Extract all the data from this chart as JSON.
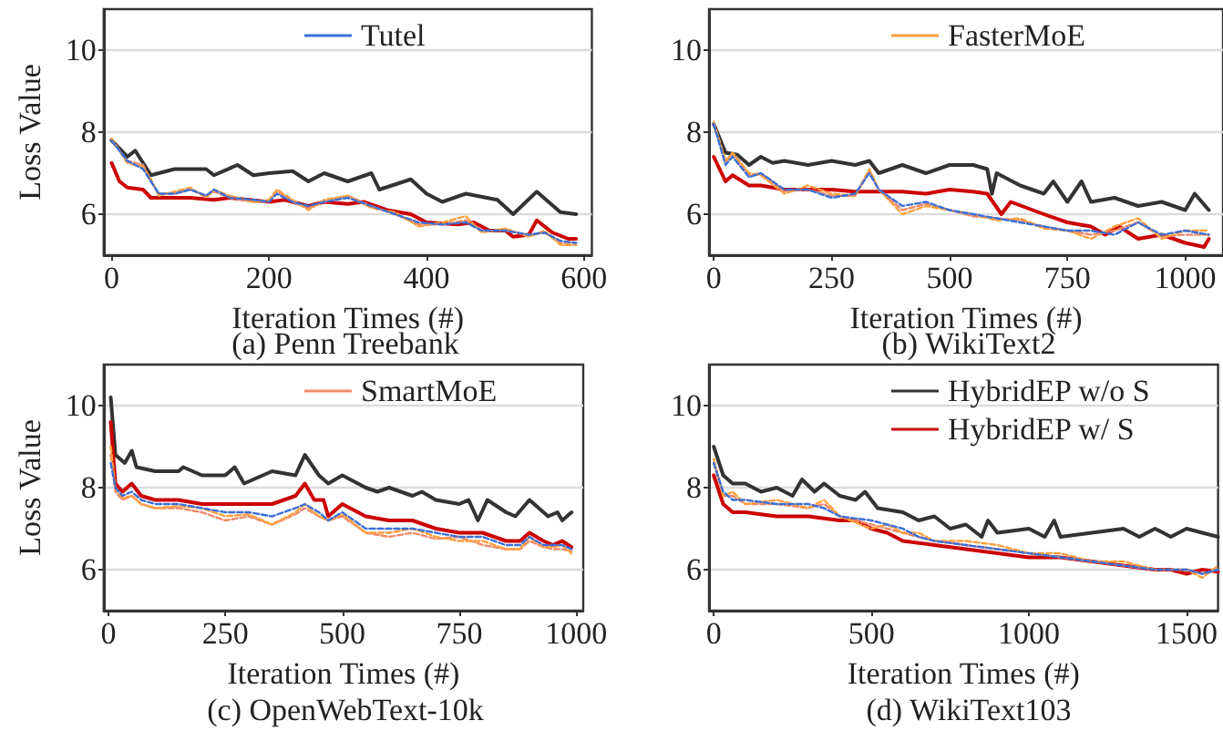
{
  "chart_data": [
    {
      "type": "line",
      "title": "(a) Penn Treebank",
      "xlabel": "Iteration Times (#)",
      "ylabel": "Loss Value",
      "xlim": [
        -10,
        610
      ],
      "xticks": [
        0,
        200,
        400,
        600
      ],
      "ylim": [
        5,
        11
      ],
      "yticks": [
        6,
        8,
        10
      ],
      "grid": "y",
      "legend": "top",
      "marker": "none",
      "series": [
        {
          "name": "Tutel",
          "color": "#3a6fd8",
          "line_style": "dashed",
          "x": [
            0,
            20,
            40,
            50,
            60,
            80,
            100,
            120,
            130,
            150,
            180,
            200,
            210,
            230,
            250,
            270,
            300,
            330,
            360,
            390,
            420,
            450,
            470,
            500,
            530,
            550,
            570,
            590
          ],
          "values": [
            7.8,
            7.3,
            7.1,
            6.8,
            6.5,
            6.5,
            6.6,
            6.45,
            6.6,
            6.4,
            6.35,
            6.3,
            6.5,
            6.3,
            6.2,
            6.3,
            6.4,
            6.2,
            6.0,
            5.8,
            5.75,
            5.8,
            5.6,
            5.6,
            5.5,
            5.55,
            5.35,
            5.3
          ]
        },
        {
          "color": "#ffa040",
          "line_style": "dashed",
          "x": [
            0,
            20,
            40,
            50,
            60,
            80,
            100,
            120,
            130,
            150,
            180,
            200,
            210,
            230,
            250,
            270,
            300,
            330,
            360,
            390,
            420,
            450,
            470,
            500,
            530,
            550,
            570,
            590
          ],
          "values": [
            7.85,
            7.25,
            7.15,
            6.85,
            6.45,
            6.55,
            6.65,
            6.4,
            6.6,
            6.45,
            6.3,
            6.35,
            6.6,
            6.35,
            6.1,
            6.35,
            6.45,
            6.15,
            6.05,
            5.7,
            5.8,
            5.95,
            5.55,
            5.65,
            5.45,
            5.6,
            5.25,
            5.25
          ]
        },
        {
          "color": "#f08a6a",
          "line_style": "dashed",
          "x": [
            0,
            20,
            40,
            50,
            60,
            80,
            100,
            120,
            130,
            150,
            180,
            200,
            210,
            230,
            250,
            270,
            300,
            330,
            360,
            390,
            420,
            450,
            470,
            500,
            530,
            550,
            570,
            590
          ],
          "values": [
            7.8,
            7.3,
            7.2,
            6.8,
            6.5,
            6.5,
            6.6,
            6.45,
            6.55,
            6.4,
            6.3,
            6.3,
            6.55,
            6.3,
            6.15,
            6.3,
            6.45,
            6.2,
            6.0,
            5.75,
            5.75,
            5.85,
            5.6,
            5.6,
            5.5,
            5.55,
            5.3,
            5.3
          ]
        },
        {
          "color": "#333333",
          "line_style": "solid",
          "x": [
            0,
            20,
            30,
            50,
            80,
            120,
            130,
            160,
            180,
            200,
            230,
            250,
            270,
            300,
            330,
            340,
            380,
            400,
            420,
            450,
            490,
            510,
            540,
            570,
            590
          ],
          "values": [
            7.8,
            7.4,
            7.55,
            6.95,
            7.1,
            7.1,
            6.95,
            7.2,
            6.95,
            7.0,
            7.05,
            6.8,
            7.0,
            6.8,
            7.0,
            6.6,
            6.85,
            6.5,
            6.3,
            6.5,
            6.35,
            6.0,
            6.55,
            6.05,
            6.0
          ]
        },
        {
          "color": "#cc0000",
          "line_style": "solid",
          "x": [
            0,
            10,
            20,
            40,
            50,
            100,
            130,
            150,
            200,
            220,
            250,
            270,
            300,
            320,
            350,
            380,
            400,
            440,
            460,
            480,
            500,
            510,
            530,
            540,
            560,
            580,
            590
          ],
          "values": [
            7.25,
            6.8,
            6.65,
            6.6,
            6.4,
            6.4,
            6.35,
            6.4,
            6.3,
            6.35,
            6.2,
            6.3,
            6.25,
            6.3,
            6.1,
            6.0,
            5.8,
            5.75,
            5.8,
            5.6,
            5.6,
            5.45,
            5.5,
            5.85,
            5.55,
            5.4,
            5.4
          ]
        }
      ]
    },
    {
      "type": "line",
      "title": "(b) WikiText2",
      "xlabel": "Iteration Times (#)",
      "xlim": [
        -10,
        1080
      ],
      "xticks": [
        0,
        250,
        500,
        750,
        1000
      ],
      "ylim": [
        5,
        11
      ],
      "yticks": [
        6,
        8,
        10
      ],
      "grid": "y",
      "legend": "top",
      "marker": "none",
      "series": [
        {
          "color": "#3a6fd8",
          "line_style": "dashed",
          "x": [
            0,
            25,
            40,
            75,
            100,
            150,
            200,
            250,
            300,
            330,
            350,
            400,
            450,
            500,
            550,
            600,
            650,
            700,
            750,
            800,
            850,
            900,
            950,
            1000,
            1050
          ],
          "values": [
            8.2,
            7.2,
            7.4,
            6.9,
            7.0,
            6.6,
            6.6,
            6.4,
            6.5,
            7.0,
            6.6,
            6.2,
            6.3,
            6.1,
            6.0,
            5.9,
            5.8,
            5.7,
            5.6,
            5.6,
            5.5,
            5.8,
            5.5,
            5.6,
            5.5
          ]
        },
        {
          "name": "FasterMoE",
          "color": "#ffa040",
          "line_style": "dashed",
          "x": [
            0,
            25,
            40,
            75,
            100,
            150,
            200,
            250,
            300,
            330,
            350,
            400,
            450,
            500,
            550,
            600,
            650,
            700,
            750,
            800,
            850,
            900,
            950,
            1000,
            1050
          ],
          "values": [
            8.25,
            7.3,
            7.5,
            7.0,
            6.95,
            6.5,
            6.7,
            6.5,
            6.45,
            7.1,
            6.6,
            6.0,
            6.2,
            6.1,
            6.0,
            5.85,
            5.9,
            5.65,
            5.6,
            5.4,
            5.7,
            5.9,
            5.4,
            5.6,
            5.6
          ]
        },
        {
          "color": "#f08a6a",
          "line_style": "dashed",
          "x": [
            0,
            25,
            40,
            75,
            100,
            150,
            200,
            250,
            300,
            330,
            350,
            400,
            450,
            500,
            550,
            600,
            650,
            700,
            750,
            800,
            850,
            900,
            950,
            1000,
            1050
          ],
          "values": [
            8.2,
            7.25,
            7.45,
            6.95,
            7.0,
            6.55,
            6.6,
            6.45,
            6.45,
            7.05,
            6.6,
            6.1,
            6.25,
            6.1,
            5.95,
            5.9,
            5.85,
            5.7,
            5.6,
            5.5,
            5.6,
            5.8,
            5.45,
            5.5,
            5.5
          ]
        },
        {
          "color": "#333333",
          "line_style": "solid",
          "x": [
            0,
            25,
            50,
            75,
            100,
            125,
            150,
            200,
            250,
            300,
            330,
            350,
            400,
            450,
            500,
            550,
            580,
            590,
            600,
            650,
            700,
            720,
            750,
            780,
            800,
            850,
            900,
            950,
            1000,
            1020,
            1050
          ],
          "values": [
            8.2,
            7.5,
            7.45,
            7.2,
            7.4,
            7.25,
            7.3,
            7.2,
            7.3,
            7.2,
            7.3,
            7.0,
            7.2,
            7.0,
            7.2,
            7.2,
            7.1,
            6.5,
            7.0,
            6.7,
            6.5,
            6.8,
            6.3,
            6.8,
            6.3,
            6.4,
            6.2,
            6.3,
            6.1,
            6.5,
            6.1
          ]
        },
        {
          "color": "#cc0000",
          "line_style": "solid",
          "x": [
            0,
            25,
            40,
            75,
            100,
            150,
            250,
            300,
            400,
            450,
            500,
            550,
            580,
            610,
            630,
            700,
            750,
            800,
            830,
            860,
            900,
            950,
            1000,
            1040,
            1050
          ],
          "values": [
            7.4,
            6.8,
            6.95,
            6.7,
            6.7,
            6.6,
            6.6,
            6.55,
            6.55,
            6.5,
            6.6,
            6.55,
            6.5,
            6.0,
            6.3,
            6.0,
            5.8,
            5.7,
            5.5,
            5.7,
            5.4,
            5.5,
            5.3,
            5.2,
            5.4
          ]
        }
      ]
    },
    {
      "type": "line",
      "title": "(c) OpenWebText-10k",
      "xlabel": "Iteration Times (#)",
      "ylabel": "Loss Value",
      "xlim": [
        -10,
        1015
      ],
      "xticks": [
        0,
        250,
        500,
        750,
        1000
      ],
      "ylim": [
        5,
        11
      ],
      "yticks": [
        6,
        8,
        10
      ],
      "grid": "y",
      "legend": "top",
      "marker": "none",
      "series": [
        {
          "color": "#3a6fd8",
          "line_style": "dashed",
          "x": [
            5,
            15,
            30,
            50,
            70,
            100,
            150,
            200,
            250,
            300,
            350,
            400,
            420,
            450,
            470,
            500,
            550,
            600,
            650,
            700,
            750,
            800,
            850,
            880,
            900,
            930,
            950,
            970,
            990
          ],
          "values": [
            8.6,
            8.0,
            7.8,
            7.9,
            7.7,
            7.6,
            7.6,
            7.5,
            7.4,
            7.4,
            7.3,
            7.5,
            7.6,
            7.4,
            7.2,
            7.4,
            7.0,
            7.0,
            7.0,
            6.9,
            6.8,
            6.8,
            6.6,
            6.6,
            6.8,
            6.6,
            6.6,
            6.6,
            6.5
          ]
        },
        {
          "color": "#ffa040",
          "line_style": "dashed",
          "x": [
            5,
            15,
            30,
            50,
            70,
            100,
            150,
            200,
            250,
            300,
            350,
            400,
            420,
            450,
            470,
            500,
            550,
            600,
            650,
            700,
            750,
            800,
            850,
            880,
            900,
            930,
            950,
            970,
            990
          ],
          "values": [
            9.0,
            8.0,
            7.75,
            7.8,
            7.6,
            7.5,
            7.55,
            7.5,
            7.3,
            7.35,
            7.1,
            7.4,
            7.6,
            7.3,
            7.2,
            7.35,
            6.9,
            6.9,
            7.0,
            6.8,
            6.7,
            6.7,
            6.5,
            6.5,
            6.8,
            6.55,
            6.55,
            6.6,
            6.4
          ]
        },
        {
          "name": "SmartMoE",
          "color": "#f08a6a",
          "line_style": "dashed",
          "x": [
            5,
            15,
            30,
            50,
            70,
            100,
            150,
            200,
            250,
            300,
            350,
            400,
            420,
            450,
            470,
            500,
            550,
            600,
            650,
            700,
            750,
            800,
            850,
            880,
            900,
            930,
            950,
            970,
            990
          ],
          "values": [
            8.8,
            7.9,
            7.7,
            7.8,
            7.6,
            7.5,
            7.5,
            7.4,
            7.2,
            7.3,
            7.1,
            7.35,
            7.5,
            7.3,
            7.2,
            7.3,
            6.9,
            6.8,
            6.9,
            6.75,
            6.8,
            6.6,
            6.5,
            6.5,
            6.7,
            6.55,
            6.5,
            6.5,
            6.45
          ]
        },
        {
          "color": "#333333",
          "line_style": "solid",
          "x": [
            5,
            15,
            35,
            50,
            60,
            100,
            150,
            160,
            200,
            250,
            270,
            290,
            350,
            400,
            420,
            450,
            470,
            500,
            550,
            575,
            600,
            650,
            670,
            700,
            750,
            770,
            790,
            810,
            850,
            870,
            900,
            940,
            960,
            970,
            990
          ],
          "values": [
            10.2,
            8.8,
            8.6,
            8.9,
            8.5,
            8.4,
            8.4,
            8.5,
            8.3,
            8.3,
            8.5,
            8.1,
            8.4,
            8.3,
            8.8,
            8.3,
            8.1,
            8.3,
            8.0,
            7.9,
            8.0,
            7.8,
            7.9,
            7.7,
            7.6,
            7.7,
            7.2,
            7.7,
            7.4,
            7.3,
            7.7,
            7.3,
            7.4,
            7.2,
            7.4
          ]
        },
        {
          "color": "#cc0000",
          "line_style": "solid",
          "x": [
            5,
            15,
            30,
            50,
            70,
            100,
            150,
            200,
            250,
            300,
            350,
            400,
            420,
            440,
            460,
            470,
            500,
            550,
            600,
            650,
            700,
            750,
            800,
            850,
            880,
            900,
            930,
            950,
            970,
            990
          ],
          "values": [
            9.6,
            8.1,
            7.9,
            8.1,
            7.8,
            7.7,
            7.7,
            7.6,
            7.6,
            7.6,
            7.6,
            7.8,
            8.1,
            7.7,
            7.7,
            7.3,
            7.6,
            7.3,
            7.2,
            7.2,
            7.0,
            6.9,
            6.9,
            6.7,
            6.7,
            6.9,
            6.7,
            6.6,
            6.7,
            6.55
          ]
        }
      ]
    },
    {
      "type": "line",
      "title": "(d) WikiText103",
      "xlabel": "Iteration Times (#)",
      "xlim": [
        -15,
        1600
      ],
      "xticks": [
        0,
        500,
        1000,
        1500
      ],
      "ylim": [
        5,
        11
      ],
      "yticks": [
        6,
        8,
        10
      ],
      "grid": "y",
      "legend": "top",
      "marker": "none",
      "series": [
        {
          "color": "#3a6fd8",
          "line_style": "dashed",
          "x": [
            0,
            30,
            60,
            100,
            200,
            300,
            350,
            400,
            500,
            550,
            600,
            650,
            700,
            800,
            900,
            1000,
            1100,
            1200,
            1300,
            1400,
            1500,
            1550,
            1600
          ],
          "values": [
            8.6,
            7.9,
            7.7,
            7.7,
            7.6,
            7.6,
            7.5,
            7.3,
            7.2,
            7.1,
            7.0,
            6.8,
            6.7,
            6.6,
            6.5,
            6.4,
            6.3,
            6.2,
            6.1,
            6.0,
            6.0,
            5.9,
            6.0
          ]
        },
        {
          "color": "#ffa040",
          "line_style": "dashed",
          "x": [
            0,
            30,
            60,
            100,
            200,
            300,
            350,
            400,
            500,
            550,
            600,
            650,
            700,
            800,
            900,
            1000,
            1100,
            1200,
            1300,
            1400,
            1500,
            1550,
            1600
          ],
          "values": [
            8.7,
            7.8,
            7.9,
            7.6,
            7.7,
            7.5,
            7.7,
            7.3,
            7.0,
            7.1,
            6.9,
            6.9,
            6.7,
            6.7,
            6.6,
            6.4,
            6.4,
            6.2,
            6.2,
            6.0,
            6.0,
            5.8,
            6.1
          ]
        },
        {
          "color": "#f08a6a",
          "line_style": "dashed",
          "x": [
            0,
            30,
            60,
            100,
            200,
            300,
            350,
            400,
            500,
            550,
            600,
            650,
            700,
            800,
            900,
            1000,
            1100,
            1200,
            1300,
            1400,
            1500,
            1550,
            1600
          ],
          "values": [
            8.6,
            7.8,
            7.8,
            7.6,
            7.6,
            7.5,
            7.6,
            7.3,
            7.1,
            7.0,
            6.9,
            6.8,
            6.7,
            6.6,
            6.5,
            6.4,
            6.3,
            6.2,
            6.1,
            6.0,
            6.0,
            5.9,
            6.0
          ]
        },
        {
          "name": "HybridEP w/o S",
          "color": "#333333",
          "line_style": "solid",
          "x": [
            0,
            30,
            60,
            100,
            150,
            200,
            250,
            280,
            320,
            350,
            400,
            450,
            480,
            520,
            600,
            650,
            700,
            750,
            800,
            850,
            870,
            900,
            1000,
            1050,
            1080,
            1100,
            1200,
            1300,
            1350,
            1400,
            1450,
            1500,
            1550,
            1600
          ],
          "values": [
            9.0,
            8.3,
            8.1,
            8.1,
            7.9,
            8.0,
            7.8,
            8.2,
            7.9,
            8.1,
            7.8,
            7.7,
            7.9,
            7.5,
            7.4,
            7.2,
            7.3,
            7.0,
            7.1,
            6.8,
            7.2,
            6.9,
            7.0,
            6.8,
            7.2,
            6.8,
            6.9,
            7.0,
            6.8,
            7.0,
            6.8,
            7.0,
            6.9,
            6.8
          ]
        },
        {
          "name": "HybridEP w/ S",
          "color": "#cc0000",
          "line_style": "solid",
          "x": [
            0,
            30,
            60,
            100,
            200,
            300,
            400,
            450,
            500,
            550,
            600,
            700,
            800,
            900,
            1000,
            1100,
            1200,
            1300,
            1400,
            1450,
            1500,
            1550,
            1600
          ],
          "values": [
            8.3,
            7.6,
            7.4,
            7.4,
            7.3,
            7.3,
            7.2,
            7.2,
            7.0,
            6.9,
            6.7,
            6.6,
            6.5,
            6.4,
            6.3,
            6.3,
            6.2,
            6.1,
            6.0,
            6.0,
            5.9,
            6.0,
            5.95
          ]
        }
      ]
    }
  ]
}
